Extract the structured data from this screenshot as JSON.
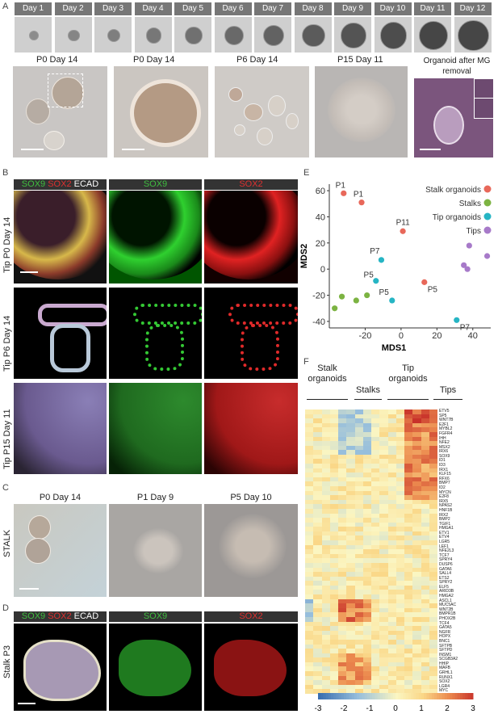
{
  "panel_labels": {
    "a": "A",
    "b": "B",
    "c": "C",
    "d": "D",
    "e": "E",
    "f": "F"
  },
  "panelA": {
    "days": [
      "Day 1",
      "Day 2",
      "Day 3",
      "Day 4",
      "Day 5",
      "Day 6",
      "Day 7",
      "Day 8",
      "Day 9",
      "Day 10",
      "Day 11",
      "Day 12"
    ],
    "bottom": [
      "P0 Day 14",
      "P0 Day 14",
      "P6 Day 14",
      "P15 Day 11",
      "Organoid after MG removal"
    ]
  },
  "panelB": {
    "hdr_merge": [
      "SOX9",
      "SOX2",
      "ECAD"
    ],
    "hdr_sox9": "SOX9",
    "hdr_sox2": "SOX2",
    "rows": [
      "Tip P0 Day 14",
      "Tip P6 Day 14",
      "Tip P15 Day 11"
    ]
  },
  "panelC": {
    "headers": [
      "P0 Day 14",
      "P1 Day 9",
      "P5 Day 10"
    ],
    "row": "STALK"
  },
  "panelD": {
    "hdr_merge": [
      "SOX9",
      "SOX2",
      "ECAD"
    ],
    "hdr_sox9": "SOX9",
    "hdr_sox2": "SOX2",
    "row": "Stalk  P3"
  },
  "colors": {
    "sox9": "#3fbf3f",
    "sox2": "#e03030",
    "ecad": "#ffffff",
    "stalk_org": "#e8685a",
    "stalks": "#7cb342",
    "tip_org": "#26b5c4",
    "tips": "#a77ac9"
  },
  "chart_data": [
    {
      "type": "scatter",
      "xlabel": "MDS1",
      "ylabel": "MDS2",
      "xlim": [
        -40,
        50
      ],
      "ylim": [
        -45,
        65
      ],
      "xticks": [
        -20,
        0,
        20,
        40
      ],
      "yticks": [
        -40,
        -20,
        0,
        20,
        40,
        60
      ],
      "legend": "top-right",
      "series": [
        {
          "name": "Stalk organoids",
          "color": "#e8685a",
          "points": [
            [
              -32,
              58
            ],
            [
              -22,
              51
            ],
            [
              1,
              29
            ],
            [
              13,
              -10
            ]
          ],
          "labels": [
            "P1",
            "P1",
            "P11",
            "P5"
          ]
        },
        {
          "name": "Stalks",
          "color": "#7cb342",
          "points": [
            [
              -37,
              -30
            ],
            [
              -33,
              -21
            ],
            [
              -25,
              -24
            ],
            [
              -19,
              -20
            ]
          ],
          "labels": [
            "",
            "",
            "",
            ""
          ]
        },
        {
          "name": "Tip organoids",
          "color": "#26b5c4",
          "points": [
            [
              -11,
              7
            ],
            [
              -14,
              -9
            ],
            [
              -5,
              -24
            ],
            [
              31,
              -39
            ]
          ],
          "labels": [
            "P7",
            "P5",
            "P5",
            "P7"
          ]
        },
        {
          "name": "Tips",
          "color": "#a77ac9",
          "points": [
            [
              35,
              3
            ],
            [
              38,
              18
            ],
            [
              37,
              0
            ],
            [
              48,
              10
            ]
          ],
          "labels": [
            "",
            "",
            "",
            ""
          ]
        }
      ]
    },
    {
      "type": "heatmap",
      "groups": [
        "Stalk organoids",
        "Stalks",
        "Tip organoids",
        "Tips"
      ],
      "genes": [
        "ETV5",
        "SP5",
        "WNT7B",
        "E2F1",
        "MYBL2",
        "FGFR4",
        "IHH",
        "NFE2",
        "MSX2",
        "IRX6",
        "SOX9",
        "ID1",
        "ID3",
        "IRX1",
        "KLF15",
        "RFX6",
        "BMP7",
        "ID2",
        "MYCN",
        "E2F8",
        "IRX5",
        "NPAS2",
        "HNF1B",
        "IRX2",
        "BMP2",
        "TGIF1",
        "HMGA1",
        "ETV1",
        "ETV4",
        "LGR5",
        "LEF1",
        "NFE2L3",
        "TCF7",
        "SPRY4",
        "DUSP6",
        "GATA6",
        "SALL4",
        "ETS2",
        "SPRY2",
        "ELF5",
        "ARID3B",
        "HMGA2",
        "ASCL1",
        "MUC5AC",
        "WNT2B",
        "BMPR1B",
        "PHOX2B",
        "TCF4",
        "GATA5",
        "NGFR",
        "HOPX",
        "BNC1",
        "SFTPB",
        "SFTPD",
        "INSM1",
        "SCGB3A2",
        "HHIP",
        "MAFB",
        "GRHL1",
        "RUNX1",
        "SOX2",
        "LGR4",
        "MYC"
      ],
      "colorbar": {
        "ticks": [
          -3,
          -2,
          -1,
          0,
          1,
          2,
          3
        ],
        "low": "#3a6fb0",
        "mid": "#fbf6c2",
        "high": "#c8322a"
      }
    }
  ]
}
